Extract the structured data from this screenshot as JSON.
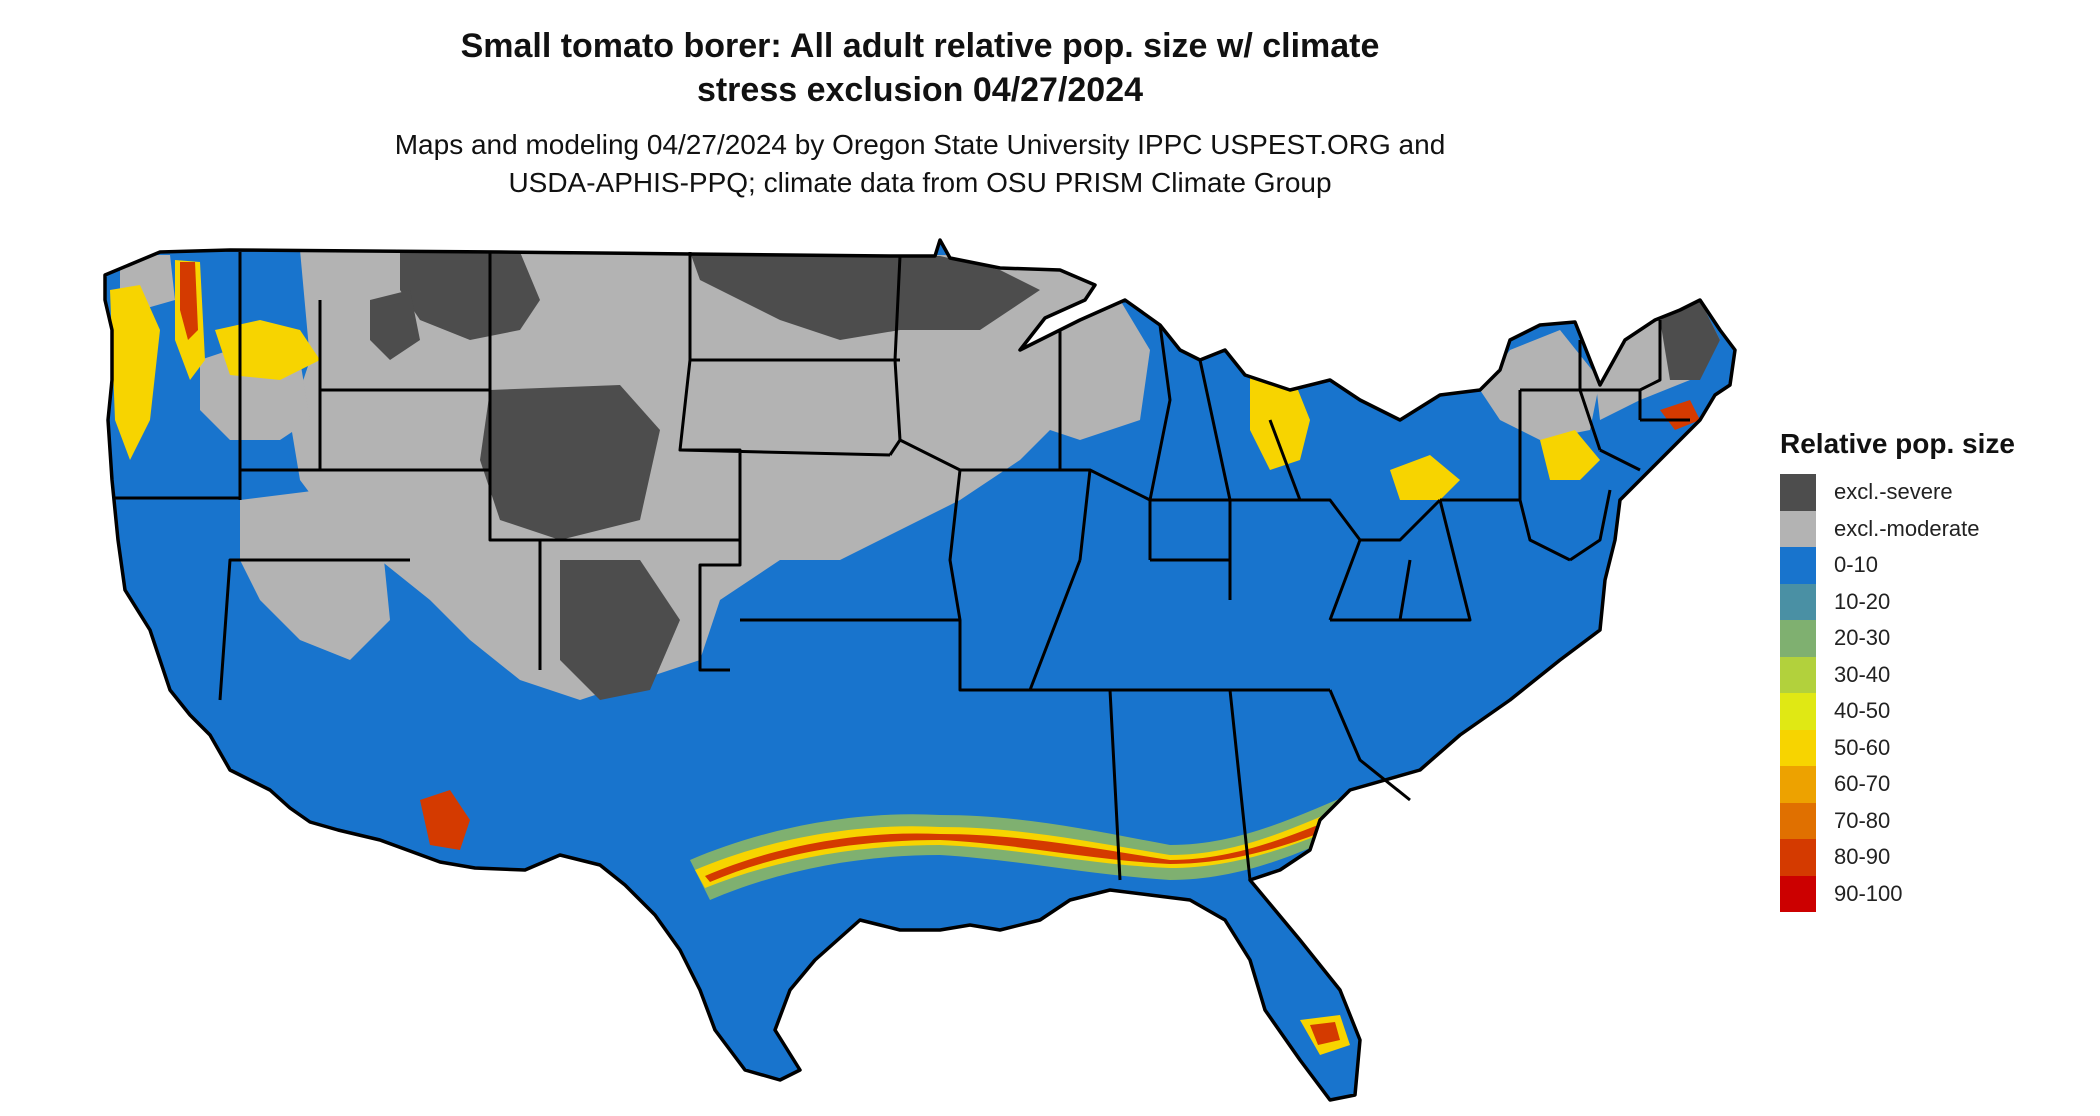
{
  "title": {
    "line1": "Small tomato borer: All adult relative pop. size w/ climate",
    "line2": "stress exclusion 04/27/2024"
  },
  "subtitle": {
    "line1": "Maps and modeling 04/27/2024 by Oregon State University IPPC USPEST.ORG and",
    "line2": "USDA-APHIS-PPQ; climate data from OSU PRISM Climate Group"
  },
  "legend": {
    "title": "Relative pop. size",
    "items": [
      {
        "label": "excl.-severe",
        "color": "#4d4d4d"
      },
      {
        "label": "excl.-moderate",
        "color": "#b3b3b3"
      },
      {
        "label": "0-10",
        "color": "#1874cd"
      },
      {
        "label": "10-20",
        "color": "#4a90a4"
      },
      {
        "label": "20-30",
        "color": "#7fb070"
      },
      {
        "label": "30-40",
        "color": "#b2d13c"
      },
      {
        "label": "40-50",
        "color": "#e0e814"
      },
      {
        "label": "50-60",
        "color": "#f7d400"
      },
      {
        "label": "60-70",
        "color": "#eda200"
      },
      {
        "label": "70-80",
        "color": "#e07000"
      },
      {
        "label": "80-90",
        "color": "#d43a00"
      },
      {
        "label": "90-100",
        "color": "#cc0000"
      }
    ]
  },
  "map": {
    "region": "conterminous-us",
    "colors": {
      "outline": "#000000",
      "severe": "#4d4d4d",
      "moderate": "#b3b3b3",
      "low": "#1874cd",
      "mid": "#7fb070",
      "yellow": "#f7d400",
      "orange": "#e07000",
      "red": "#d43a00"
    }
  }
}
